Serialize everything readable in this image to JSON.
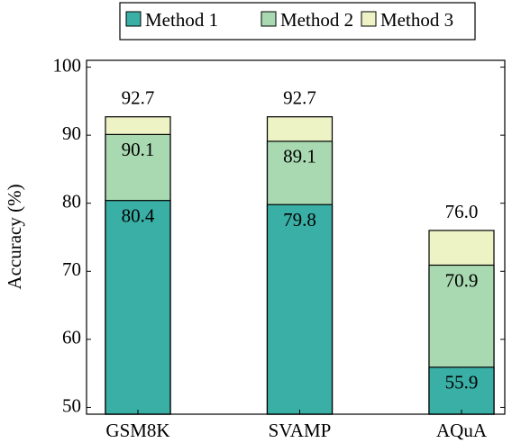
{
  "chart_data": {
    "type": "bar",
    "y_label": "Accuracy (%)",
    "categories": [
      "GSM8K",
      "SVAMP",
      "AQuA"
    ],
    "series": [
      {
        "name": "Method 1",
        "color": "#3aafa6",
        "values": [
          80.4,
          79.8,
          55.9
        ]
      },
      {
        "name": "Method 2",
        "color": "#a9d9b1",
        "values": [
          90.1,
          89.1,
          70.9
        ]
      },
      {
        "name": "Method 3",
        "color": "#eef3c5",
        "values": [
          92.7,
          92.7,
          76.0
        ],
        "value_labels": [
          "92.7",
          "92.7",
          "76.0"
        ]
      }
    ],
    "ylim": [
      49,
      101
    ],
    "yticks": [
      50,
      60,
      70,
      80,
      90,
      100
    ],
    "legend": "top"
  }
}
